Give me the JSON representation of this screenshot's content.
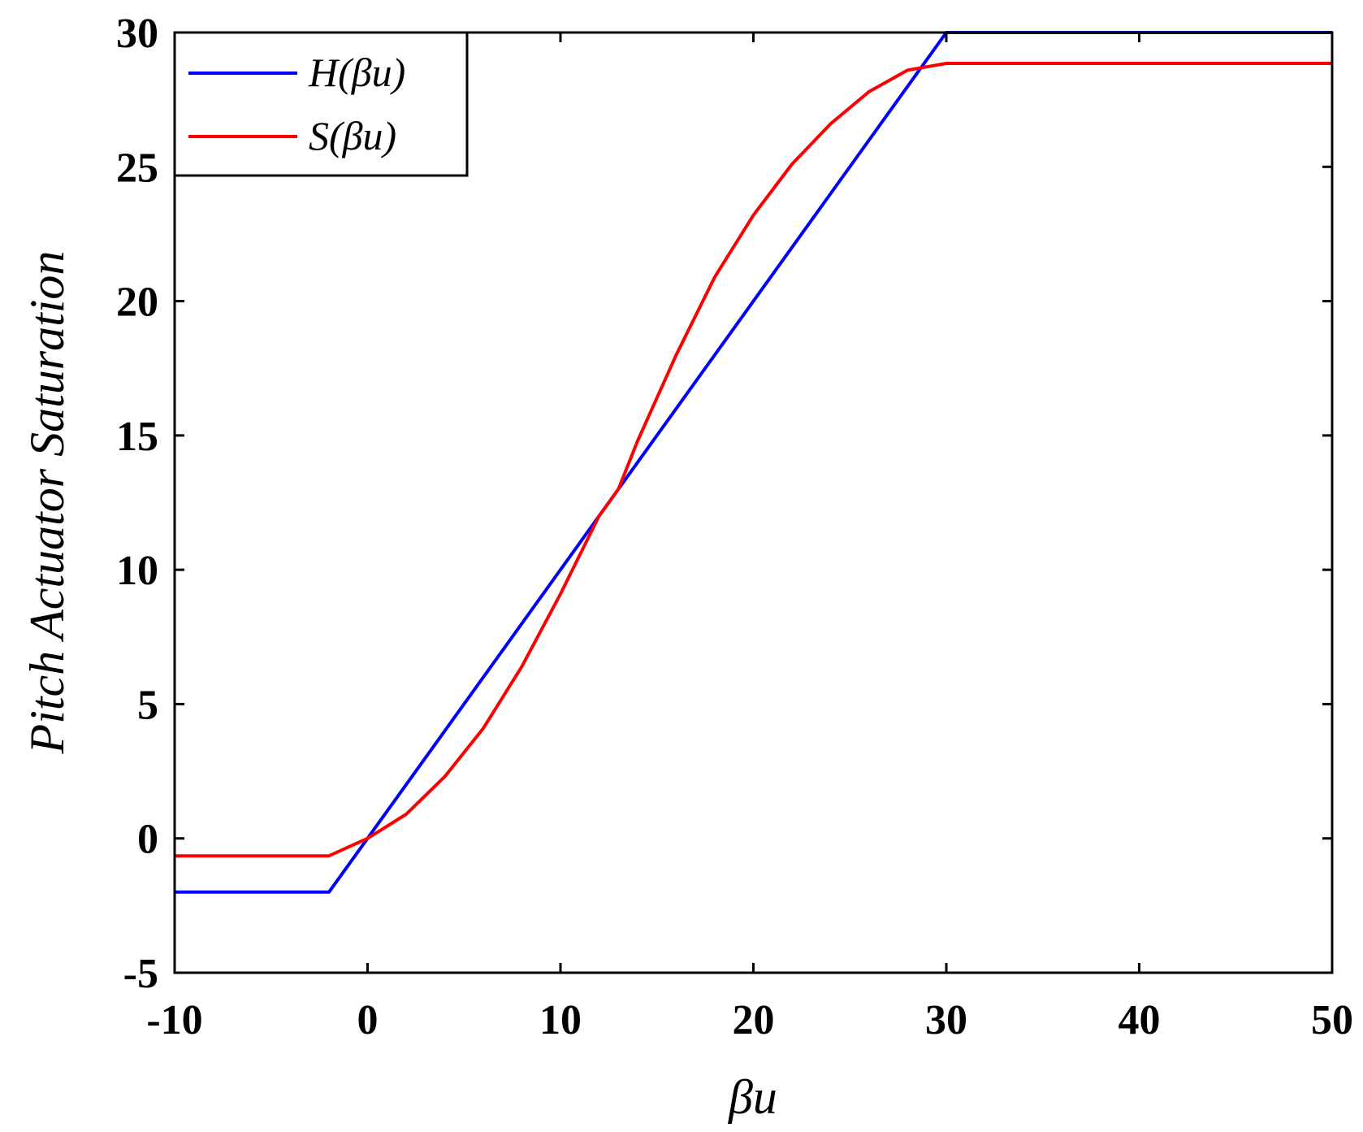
{
  "chart_data": {
    "type": "line",
    "xlabel": "βu",
    "ylabel": "Pitch Actuator Saturation",
    "xlim": [
      -10,
      50
    ],
    "ylim": [
      -5,
      30
    ],
    "x_ticks": [
      -10,
      0,
      10,
      20,
      30,
      40,
      50
    ],
    "x_tick_labels": [
      "-10",
      "0",
      "10",
      "20",
      "30",
      "40",
      "50"
    ],
    "y_ticks": [
      -5,
      0,
      5,
      10,
      15,
      20,
      25,
      30
    ],
    "y_tick_labels": [
      "-5",
      "0",
      "5",
      "10",
      "15",
      "20",
      "25",
      "30"
    ],
    "grid": false,
    "legend_position": "top-left",
    "series": [
      {
        "name": "H(βu)",
        "color": "#0000ff",
        "x": [
          -10,
          -2,
          30,
          50
        ],
        "y": [
          -2,
          -2,
          30,
          30
        ]
      },
      {
        "name": "S(βu)",
        "color": "#ff0000",
        "x": [
          -10,
          -2,
          0,
          2,
          4,
          6,
          8,
          10,
          12,
          13,
          14,
          16,
          18,
          20,
          22,
          24,
          26,
          28,
          30,
          50
        ],
        "y": [
          -0.65,
          -0.65,
          0,
          0.9,
          2.3,
          4.1,
          6.4,
          9.1,
          12.0,
          13.0,
          14.8,
          18.0,
          20.9,
          23.2,
          25.1,
          26.6,
          27.8,
          28.6,
          28.85,
          28.85
        ]
      }
    ]
  }
}
